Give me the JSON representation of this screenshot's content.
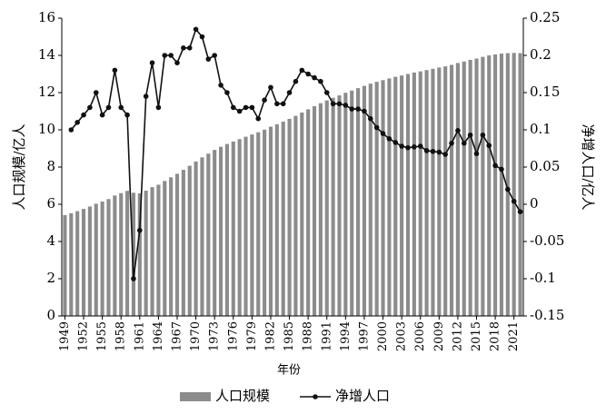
{
  "chart_data": {
    "type": "bar-line",
    "x_label": "年份",
    "y_label": "人口规模/亿人",
    "y2_label": "净增人口/亿人",
    "x": [
      1949,
      1950,
      1951,
      1952,
      1953,
      1954,
      1955,
      1956,
      1957,
      1958,
      1959,
      1960,
      1961,
      1962,
      1963,
      1964,
      1965,
      1966,
      1967,
      1968,
      1969,
      1970,
      1971,
      1972,
      1973,
      1974,
      1975,
      1976,
      1977,
      1978,
      1979,
      1980,
      1981,
      1982,
      1983,
      1984,
      1985,
      1986,
      1987,
      1988,
      1989,
      1990,
      1991,
      1992,
      1993,
      1994,
      1995,
      1996,
      1997,
      1998,
      1999,
      2000,
      2001,
      2002,
      2003,
      2004,
      2005,
      2006,
      2007,
      2008,
      2009,
      2010,
      2011,
      2012,
      2013,
      2014,
      2015,
      2016,
      2017,
      2018,
      2019,
      2020,
      2021,
      2022
    ],
    "xlim": [
      1948.5,
      2022.5
    ],
    "xticks": [
      1949,
      1952,
      1955,
      1958,
      1961,
      1964,
      1967,
      1970,
      1973,
      1976,
      1979,
      1982,
      1985,
      1988,
      1991,
      1994,
      1997,
      2000,
      2003,
      2006,
      2009,
      2012,
      2015,
      2018,
      2021
    ],
    "ylim": [
      0,
      16
    ],
    "yticks": [
      0,
      2,
      4,
      6,
      8,
      10,
      12,
      14,
      16
    ],
    "y2lim": [
      -0.15,
      0.25
    ],
    "y2ticks": [
      -0.15,
      -0.1,
      -0.05,
      0,
      0.05,
      0.1,
      0.15,
      0.2,
      0.25
    ],
    "series": [
      {
        "name": "人口规模",
        "type": "bar",
        "color": "#8c8c8c",
        "values": [
          5.42,
          5.52,
          5.63,
          5.75,
          5.88,
          6.03,
          6.15,
          6.28,
          6.47,
          6.6,
          6.72,
          6.62,
          6.59,
          6.73,
          6.92,
          7.05,
          7.25,
          7.45,
          7.64,
          7.85,
          8.07,
          8.3,
          8.52,
          8.72,
          8.92,
          9.09,
          9.24,
          9.37,
          9.5,
          9.63,
          9.75,
          9.87,
          10.01,
          10.17,
          10.3,
          10.44,
          10.59,
          10.75,
          10.93,
          11.1,
          11.27,
          11.43,
          11.58,
          11.72,
          11.85,
          11.99,
          12.11,
          12.24,
          12.36,
          12.48,
          12.58,
          12.67,
          12.76,
          12.85,
          12.92,
          13.0,
          13.08,
          13.14,
          13.21,
          13.28,
          13.35,
          13.41,
          13.49,
          13.59,
          13.67,
          13.76,
          13.83,
          13.92,
          14.0,
          14.05,
          14.1,
          14.12,
          14.13,
          14.12
        ]
      },
      {
        "name": "净增人口",
        "type": "line",
        "axis": "y2",
        "color": "#111111",
        "values": [
          null,
          0.1,
          0.11,
          0.12,
          0.13,
          0.15,
          0.12,
          0.13,
          0.18,
          0.13,
          0.12,
          -0.1,
          -0.035,
          0.145,
          0.19,
          0.13,
          0.2,
          0.2,
          0.19,
          0.21,
          0.21,
          0.235,
          0.225,
          0.195,
          0.2,
          0.16,
          0.15,
          0.13,
          0.125,
          0.13,
          0.13,
          0.115,
          0.14,
          0.157,
          0.135,
          0.135,
          0.15,
          0.165,
          0.18,
          0.175,
          0.17,
          0.165,
          0.15,
          0.135,
          0.135,
          0.133,
          0.128,
          0.128,
          0.125,
          0.115,
          0.103,
          0.095,
          0.088,
          0.083,
          0.078,
          0.076,
          0.077,
          0.078,
          0.072,
          0.071,
          0.07,
          0.067,
          0.082,
          0.099,
          0.082,
          0.093,
          0.068,
          0.093,
          0.079,
          0.052,
          0.047,
          0.02,
          0.004,
          -0.01
        ]
      }
    ]
  }
}
